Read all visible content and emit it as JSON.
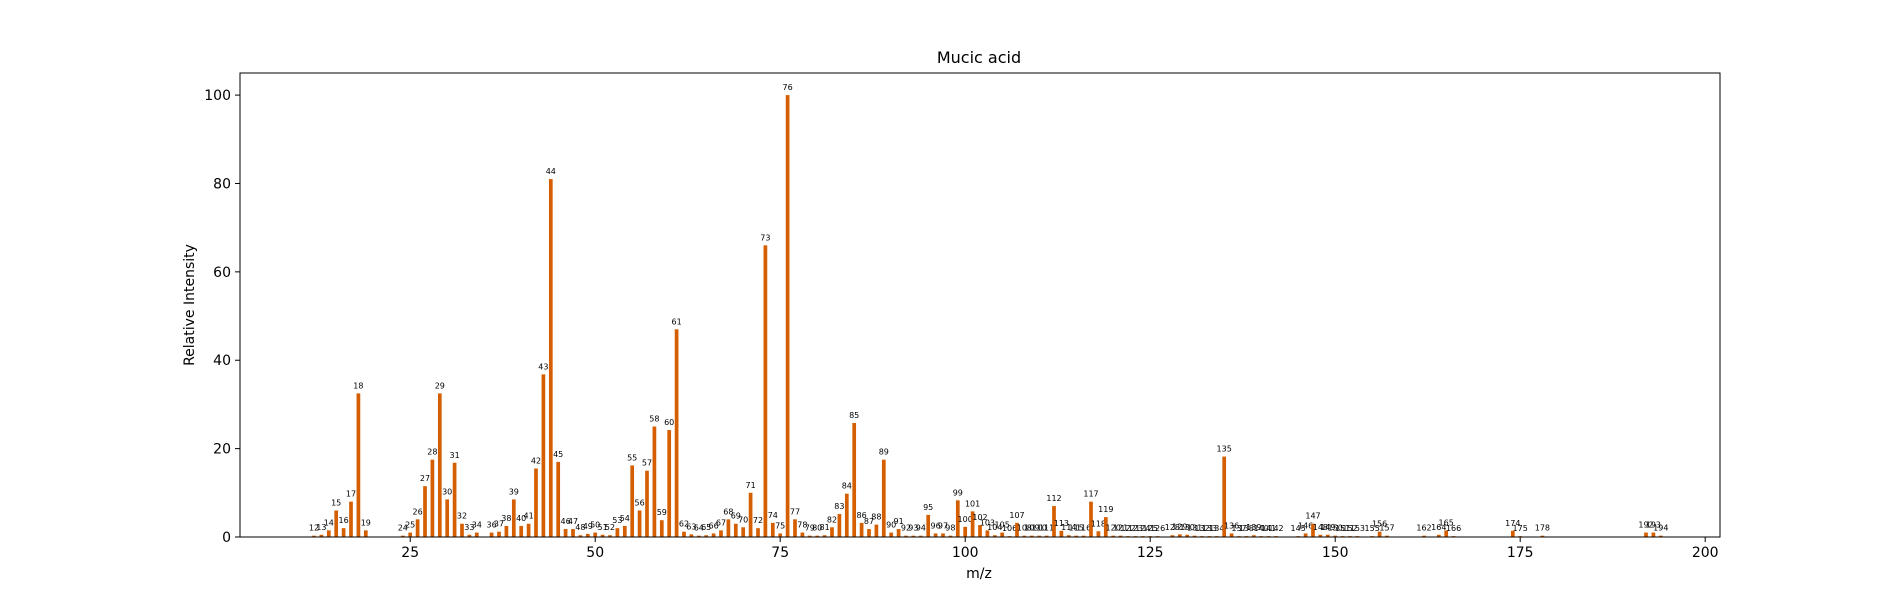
{
  "chart_data": {
    "type": "bar",
    "title": "Mucic acid",
    "xlabel": "m/z",
    "ylabel": "Relative Intensity",
    "xlim": [
      2,
      202
    ],
    "ylim": [
      0,
      105
    ],
    "x_ticks": [
      25,
      50,
      75,
      100,
      125,
      150,
      175,
      200
    ],
    "y_ticks": [
      0,
      20,
      40,
      60,
      80,
      100
    ],
    "bar_color": "#d55e00",
    "grid": false,
    "series": [
      {
        "x": [
          12,
          13,
          14,
          15,
          16,
          17,
          18,
          19,
          24,
          25,
          26,
          27,
          28,
          29,
          30,
          31,
          32,
          33,
          34,
          36,
          37,
          38,
          39,
          40,
          41,
          42,
          43,
          44,
          45,
          46,
          47,
          48,
          49,
          50,
          51,
          52,
          53,
          54,
          55,
          56,
          57,
          58,
          59,
          60,
          61,
          62,
          63,
          64,
          65,
          66,
          67,
          68,
          69,
          70,
          71,
          72,
          73,
          74,
          75,
          76,
          77,
          78,
          79,
          80,
          81,
          82,
          83,
          84,
          85,
          86,
          87,
          88,
          89,
          90,
          91,
          92,
          93,
          94,
          95,
          96,
          97,
          98,
          99,
          100,
          101,
          102,
          103,
          104,
          105,
          106,
          107,
          108,
          109,
          110,
          111,
          112,
          113,
          114,
          115,
          116,
          117,
          118,
          119,
          120,
          121,
          122,
          123,
          124,
          125,
          126,
          128,
          129,
          130,
          131,
          132,
          133,
          134,
          135,
          136,
          137,
          138,
          139,
          140,
          141,
          142,
          145,
          146,
          147,
          148,
          149,
          150,
          151,
          152,
          153,
          155,
          156,
          157,
          162,
          164,
          165,
          166,
          174,
          175,
          178,
          192,
          193,
          194
        ],
        "y": [
          0.3,
          0.5,
          1.5,
          6,
          2,
          8,
          32.5,
          1.5,
          0.3,
          1,
          4,
          11.5,
          17.5,
          32.5,
          8.5,
          16.8,
          3,
          0.5,
          1,
          1,
          1.2,
          2.5,
          8.5,
          2.5,
          3,
          15.5,
          36.8,
          81,
          17,
          1.8,
          1.8,
          0.4,
          0.7,
          1,
          0.5,
          0.4,
          2,
          2.5,
          16.2,
          6,
          15,
          25,
          3.8,
          24.2,
          47,
          1.2,
          0.6,
          0.3,
          0.4,
          0.8,
          1.5,
          4,
          3,
          2.2,
          10,
          2,
          66,
          3.2,
          0.8,
          100,
          4,
          1,
          0.3,
          0.3,
          0.4,
          2.2,
          5.2,
          9.8,
          25.8,
          3.2,
          1.8,
          2.8,
          17.5,
          1,
          1.8,
          0.3,
          0.3,
          0.3,
          5,
          0.8,
          0.8,
          0.3,
          8.3,
          2.3,
          5.8,
          2.7,
          1.5,
          0.4,
          1,
          0.2,
          3.2,
          0.3,
          0.3,
          0.3,
          0.3,
          7,
          1.4,
          0.4,
          0.3,
          0.3,
          8,
          1.3,
          4.5,
          0.3,
          0.3,
          0.2,
          0.2,
          0.2,
          0.2,
          0.2,
          0.4,
          0.6,
          0.5,
          0.3,
          0.2,
          0.2,
          0.2,
          18.2,
          0.8,
          0.2,
          0.2,
          0.4,
          0.2,
          0.2,
          0.2,
          0.2,
          0.8,
          3,
          0.5,
          0.5,
          0.3,
          0.2,
          0.2,
          0.2,
          0.2,
          1.2,
          0.3,
          0.3,
          0.5,
          1.5,
          0.2,
          1.4,
          0.2,
          0.3,
          1,
          1,
          0.3
        ]
      }
    ]
  }
}
